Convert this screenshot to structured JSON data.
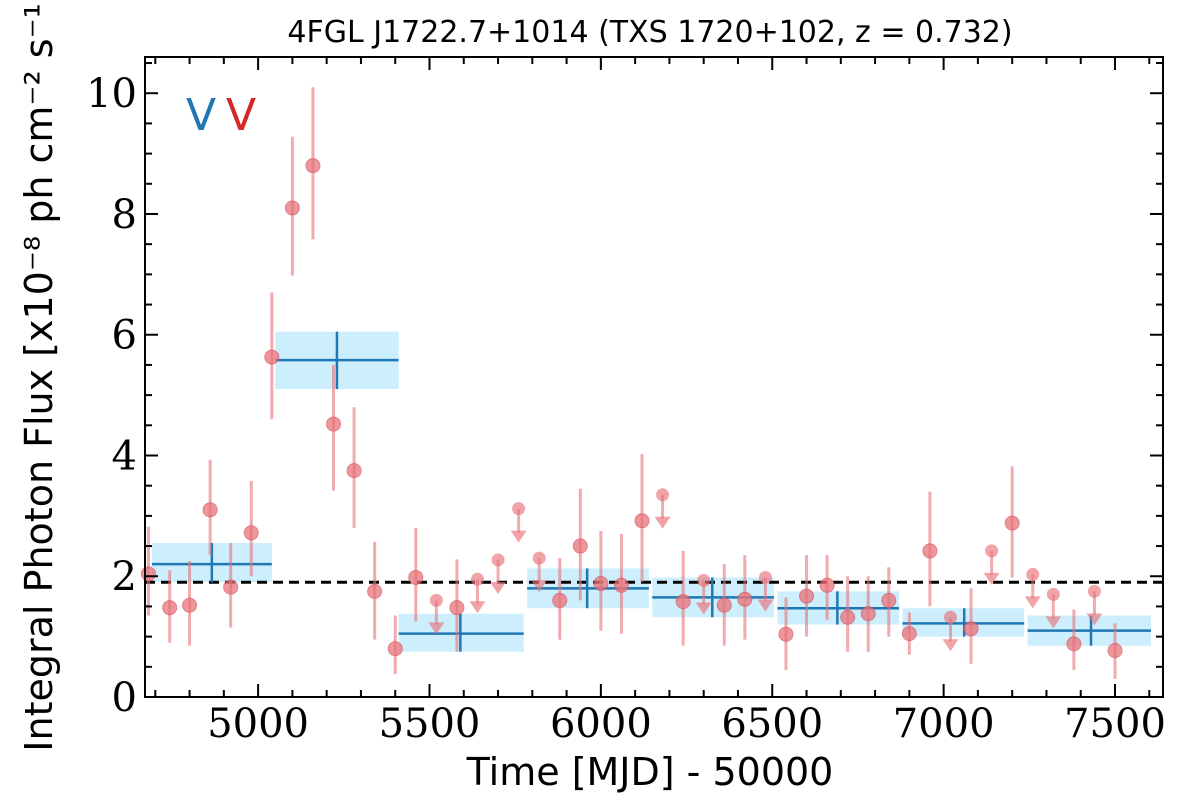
{
  "chart_data": {
    "type": "scatter",
    "title": "4FGL J1722.7+1014 (TXS 1720+102, z = 0.732)",
    "xlabel": "Time [MJD] - 50000",
    "ylabel": "Integral Photon Flux [x10⁻⁸ ph cm⁻² s⁻¹]",
    "xlim": [
      4670,
      7640
    ],
    "ylim": [
      0,
      10.6
    ],
    "x_ticks": [
      5000,
      5500,
      6000,
      6500,
      7000,
      7500
    ],
    "y_ticks": [
      0,
      2,
      4,
      6,
      8,
      10
    ],
    "x_tick_labels": [
      "5000",
      "5500",
      "6000",
      "6500",
      "7000",
      "7500"
    ],
    "y_tick_labels": [
      "0",
      "2",
      "4",
      "6",
      "8",
      "10"
    ],
    "grid": false,
    "reference_line": {
      "y": 1.9,
      "style": "dashed",
      "color": "#000000"
    },
    "markers": [
      {
        "label": "V",
        "color": "#1f77b4"
      },
      {
        "label": "V",
        "color": "#d62728"
      }
    ],
    "bins": {
      "color": "#1f77b4",
      "band_color": "#cdeefc",
      "items": [
        {
          "x": 4865,
          "x_lo": 4690,
          "x_hi": 5040,
          "y": 2.2,
          "y_lo": 1.9,
          "y_hi": 2.55
        },
        {
          "x": 5230,
          "x_lo": 5050,
          "x_hi": 5410,
          "y": 5.58,
          "y_lo": 5.1,
          "y_hi": 6.05
        },
        {
          "x": 5590,
          "x_lo": 5410,
          "x_hi": 5775,
          "y": 1.05,
          "y_lo": 0.75,
          "y_hi": 1.38
        },
        {
          "x": 5960,
          "x_lo": 5785,
          "x_hi": 6140,
          "y": 1.8,
          "y_lo": 1.47,
          "y_hi": 2.13
        },
        {
          "x": 6325,
          "x_lo": 6150,
          "x_hi": 6505,
          "y": 1.65,
          "y_lo": 1.32,
          "y_hi": 1.98
        },
        {
          "x": 6690,
          "x_lo": 6515,
          "x_hi": 6870,
          "y": 1.47,
          "y_lo": 1.2,
          "y_hi": 1.75
        },
        {
          "x": 7060,
          "x_lo": 6880,
          "x_hi": 7235,
          "y": 1.22,
          "y_lo": 1.0,
          "y_hi": 1.47
        },
        {
          "x": 7430,
          "x_lo": 7245,
          "x_hi": 7605,
          "y": 1.1,
          "y_lo": 0.85,
          "y_hi": 1.35
        }
      ]
    },
    "points": {
      "color": "#e8737a",
      "items": [
        {
          "x": 4680,
          "y": 2.04,
          "y_lo": 1.35,
          "y_hi": 2.82
        },
        {
          "x": 4742,
          "y": 1.48,
          "y_lo": 0.9,
          "y_hi": 2.1
        },
        {
          "x": 4800,
          "y": 1.52,
          "y_lo": 0.85,
          "y_hi": 2.25
        },
        {
          "x": 4860,
          "y": 3.1,
          "y_lo": 2.35,
          "y_hi": 3.93
        },
        {
          "x": 4920,
          "y": 1.82,
          "y_lo": 1.15,
          "y_hi": 2.55
        },
        {
          "x": 4980,
          "y": 2.72,
          "y_lo": 2.0,
          "y_hi": 3.58
        },
        {
          "x": 5040,
          "y": 5.63,
          "y_lo": 4.6,
          "y_hi": 6.7
        },
        {
          "x": 5100,
          "y": 8.1,
          "y_lo": 6.98,
          "y_hi": 9.28
        },
        {
          "x": 5160,
          "y": 8.8,
          "y_lo": 7.58,
          "y_hi": 10.1
        },
        {
          "x": 5220,
          "y": 4.52,
          "y_lo": 3.42,
          "y_hi": 5.5
        },
        {
          "x": 5280,
          "y": 3.75,
          "y_lo": 2.8,
          "y_hi": 4.8
        },
        {
          "x": 5340,
          "y": 1.75,
          "y_lo": 0.95,
          "y_hi": 2.57
        },
        {
          "x": 5400,
          "y": 0.8,
          "y_lo": 0.38,
          "y_hi": 1.35
        },
        {
          "x": 5460,
          "y": 1.98,
          "y_lo": 1.25,
          "y_hi": 2.8
        },
        {
          "x": 5520,
          "y": 1.6,
          "ul": true
        },
        {
          "x": 5580,
          "y": 1.48,
          "y_lo": 0.75,
          "y_hi": 2.28
        },
        {
          "x": 5640,
          "y": 1.95,
          "ul": true
        },
        {
          "x": 5700,
          "y": 2.27,
          "ul": true
        },
        {
          "x": 5760,
          "y": 3.12,
          "ul": true
        },
        {
          "x": 5820,
          "y": 2.3,
          "ul": true
        },
        {
          "x": 5880,
          "y": 1.6,
          "y_lo": 0.95,
          "y_hi": 2.3
        },
        {
          "x": 5940,
          "y": 2.5,
          "y_lo": 1.6,
          "y_hi": 3.45
        },
        {
          "x": 6000,
          "y": 1.88,
          "y_lo": 1.1,
          "y_hi": 2.75
        },
        {
          "x": 6060,
          "y": 1.85,
          "y_lo": 1.05,
          "y_hi": 2.7
        },
        {
          "x": 6120,
          "y": 2.92,
          "y_lo": 1.9,
          "y_hi": 4.02
        },
        {
          "x": 6180,
          "y": 3.35,
          "ul": true
        },
        {
          "x": 6240,
          "y": 1.58,
          "y_lo": 0.85,
          "y_hi": 2.42
        },
        {
          "x": 6300,
          "y": 1.93,
          "ul": true
        },
        {
          "x": 6360,
          "y": 1.52,
          "y_lo": 0.85,
          "y_hi": 2.2
        },
        {
          "x": 6420,
          "y": 1.62,
          "y_lo": 0.95,
          "y_hi": 2.35
        },
        {
          "x": 6480,
          "y": 1.98,
          "ul": true
        },
        {
          "x": 6540,
          "y": 1.04,
          "y_lo": 0.45,
          "y_hi": 1.65
        },
        {
          "x": 6600,
          "y": 1.67,
          "y_lo": 1.0,
          "y_hi": 2.35
        },
        {
          "x": 6660,
          "y": 1.85,
          "y_lo": 1.28,
          "y_hi": 2.35
        },
        {
          "x": 6720,
          "y": 1.32,
          "y_lo": 0.75,
          "y_hi": 2.0
        },
        {
          "x": 6780,
          "y": 1.38,
          "y_lo": 0.75,
          "y_hi": 2.0
        },
        {
          "x": 6840,
          "y": 1.6,
          "y_lo": 1.0,
          "y_hi": 2.15
        },
        {
          "x": 6900,
          "y": 1.05,
          "y_lo": 0.7,
          "y_hi": 1.4
        },
        {
          "x": 6960,
          "y": 2.42,
          "y_lo": 1.5,
          "y_hi": 3.4
        },
        {
          "x": 7020,
          "y": 1.32,
          "ul": true
        },
        {
          "x": 7080,
          "y": 1.13,
          "y_lo": 0.55,
          "y_hi": 1.8
        },
        {
          "x": 7140,
          "y": 2.42,
          "ul": true
        },
        {
          "x": 7200,
          "y": 2.88,
          "y_lo": 1.98,
          "y_hi": 3.82
        },
        {
          "x": 7260,
          "y": 2.03,
          "ul": true
        },
        {
          "x": 7320,
          "y": 1.7,
          "ul": true
        },
        {
          "x": 7380,
          "y": 0.88,
          "y_lo": 0.45,
          "y_hi": 1.45
        },
        {
          "x": 7440,
          "y": 1.75,
          "ul": true
        },
        {
          "x": 7500,
          "y": 0.77,
          "y_lo": 0.3,
          "y_hi": 1.22
        }
      ]
    }
  }
}
